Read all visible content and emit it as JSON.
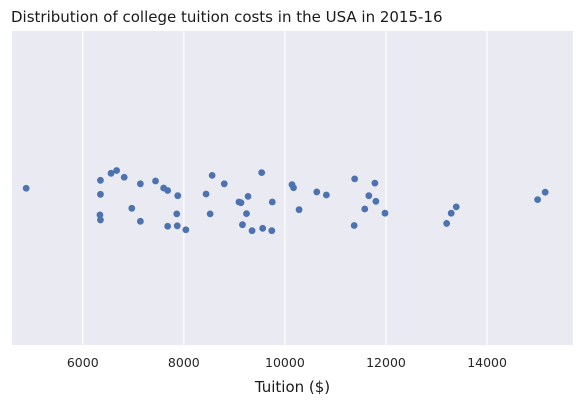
{
  "chart_data": {
    "type": "scatter",
    "title": "Distribution of college tuition costs in the USA in 2015-16",
    "xlabel": "Tuition ($)",
    "ylabel": "",
    "xlim": [
      4600,
      15700
    ],
    "xticks": [
      6000,
      8000,
      10000,
      12000,
      14000
    ],
    "xtick_labels": [
      "6000",
      "8000",
      "10000",
      "12000",
      "14000"
    ],
    "grid": true,
    "background": "#eaeaf2",
    "point_color": "#4c72b0",
    "points": [
      {
        "x": 4880,
        "jitter": 0.002
      },
      {
        "x": 6350,
        "jitter": -0.055
      },
      {
        "x": 6350,
        "jitter": 0.045
      },
      {
        "x": 6340,
        "jitter": 0.192
      },
      {
        "x": 6350,
        "jitter": 0.228
      },
      {
        "x": 6560,
        "jitter": -0.105
      },
      {
        "x": 6670,
        "jitter": -0.125
      },
      {
        "x": 6820,
        "jitter": -0.077
      },
      {
        "x": 6970,
        "jitter": 0.145
      },
      {
        "x": 7140,
        "jitter": -0.03
      },
      {
        "x": 7140,
        "jitter": 0.238
      },
      {
        "x": 7440,
        "jitter": -0.05
      },
      {
        "x": 7600,
        "jitter": 0.0
      },
      {
        "x": 7680,
        "jitter": 0.018
      },
      {
        "x": 7680,
        "jitter": 0.273
      },
      {
        "x": 7860,
        "jitter": 0.185
      },
      {
        "x": 7880,
        "jitter": 0.055
      },
      {
        "x": 7870,
        "jitter": 0.27
      },
      {
        "x": 8040,
        "jitter": 0.298
      },
      {
        "x": 8440,
        "jitter": 0.043
      },
      {
        "x": 8520,
        "jitter": 0.185
      },
      {
        "x": 8560,
        "jitter": -0.09
      },
      {
        "x": 8800,
        "jitter": -0.03
      },
      {
        "x": 9090,
        "jitter": 0.1
      },
      {
        "x": 9130,
        "jitter": 0.105
      },
      {
        "x": 9160,
        "jitter": 0.262
      },
      {
        "x": 9240,
        "jitter": 0.183
      },
      {
        "x": 9270,
        "jitter": 0.06
      },
      {
        "x": 9350,
        "jitter": 0.305
      },
      {
        "x": 9540,
        "jitter": -0.11
      },
      {
        "x": 9560,
        "jitter": 0.288
      },
      {
        "x": 9750,
        "jitter": 0.1
      },
      {
        "x": 9740,
        "jitter": 0.305
      },
      {
        "x": 10140,
        "jitter": -0.024
      },
      {
        "x": 10170,
        "jitter": -0.002
      },
      {
        "x": 10280,
        "jitter": 0.155
      },
      {
        "x": 10630,
        "jitter": 0.028
      },
      {
        "x": 10820,
        "jitter": 0.05
      },
      {
        "x": 11380,
        "jitter": -0.065
      },
      {
        "x": 11370,
        "jitter": 0.268
      },
      {
        "x": 11580,
        "jitter": 0.15
      },
      {
        "x": 11660,
        "jitter": 0.055
      },
      {
        "x": 11780,
        "jitter": -0.035
      },
      {
        "x": 11800,
        "jitter": 0.095
      },
      {
        "x": 11980,
        "jitter": 0.18
      },
      {
        "x": 13200,
        "jitter": 0.253
      },
      {
        "x": 13290,
        "jitter": 0.18
      },
      {
        "x": 13390,
        "jitter": 0.135
      },
      {
        "x": 15000,
        "jitter": 0.083
      },
      {
        "x": 15150,
        "jitter": 0.03
      }
    ]
  }
}
